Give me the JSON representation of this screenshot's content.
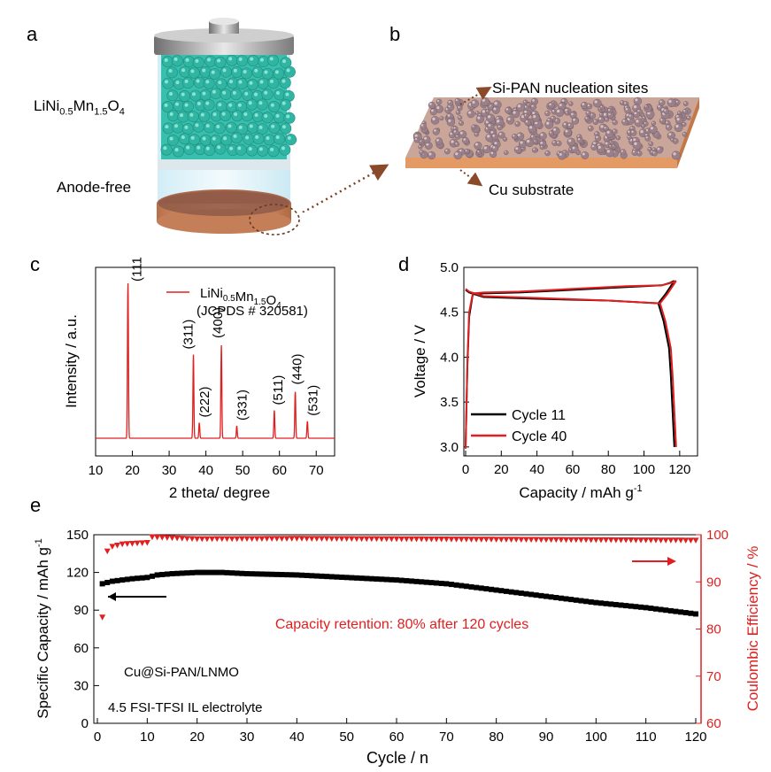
{
  "panels": {
    "a": {
      "label": "a",
      "cathode_label": "LiNi0.5Mn1.5O4",
      "anode_label": "Anode-free",
      "colors": {
        "cathode": "#3cc8b4",
        "copper": "#d99a6e",
        "cap": "#9a9a9a"
      }
    },
    "b": {
      "label": "b",
      "top_label": "Si-PAN nucleation sites",
      "bottom_label": "Cu substrate",
      "colors": {
        "arrow": "#8a4a2a",
        "substrate": "#e8a270",
        "particle": "#a08890"
      }
    },
    "c": {
      "label": "c",
      "legend_compound": "LiNi0.5Mn1.5O4",
      "legend_ref": "(JCPDS # 320581)",
      "xlabel": "2 theta/ degree",
      "ylabel": "Intensity / a.u.",
      "xticks": [
        "10",
        "20",
        "30",
        "40",
        "50",
        "60",
        "70"
      ],
      "peak_labels": [
        "(111)",
        "(311)",
        "(222)",
        "(400)",
        "(331)",
        "(511)",
        "(440)",
        "(531)"
      ],
      "color": "#e02020"
    },
    "d": {
      "label": "d",
      "xlabel": "Capacity / mAh g",
      "xlabel_sup": "-1",
      "ylabel": "Voltage / V",
      "xticks": [
        "0",
        "20",
        "40",
        "60",
        "80",
        "100",
        "120"
      ],
      "yticks": [
        "3.0",
        "3.5",
        "4.0",
        "4.5",
        "5.0"
      ],
      "legend": [
        {
          "name": "Cycle 11",
          "color": "#000000"
        },
        {
          "name": "Cycle 40",
          "color": "#e02020"
        }
      ]
    },
    "e": {
      "label": "e",
      "xlabel": "Cycle / n",
      "ylabel_left": "Specific Capacity / mAh g",
      "ylabel_left_sup": "-1",
      "ylabel_right": "Coulombic Efficiency / %",
      "xticks": [
        "0",
        "10",
        "20",
        "30",
        "40",
        "50",
        "60",
        "70",
        "80",
        "90",
        "100",
        "110",
        "120"
      ],
      "yticks_left": [
        "0",
        "30",
        "60",
        "90",
        "120",
        "150"
      ],
      "yticks_right": [
        "60",
        "70",
        "80",
        "90",
        "100"
      ],
      "annotation": "Capacity retention: 80% after 120 cycles",
      "cell_label": "Cu@Si-PAN/LNMO",
      "electrolyte_label": "4.5 FSI-TFSI IL electrolyte",
      "colors": {
        "capacity": "#000000",
        "efficiency": "#e02020"
      }
    }
  },
  "chart_data": [
    {
      "type": "line",
      "title": "",
      "xlabel": "2 theta/ degree",
      "ylabel": "Intensity / a.u.",
      "xlim": [
        10,
        75
      ],
      "series": [
        {
          "name": "LiNi0.5Mn1.5O4",
          "color": "#e02020"
        }
      ],
      "peaks": [
        {
          "x": 18.8,
          "h": 1.0,
          "label": "(111)"
        },
        {
          "x": 36.6,
          "h": 0.54,
          "label": "(311)"
        },
        {
          "x": 38.2,
          "h": 0.1,
          "label": "(222)"
        },
        {
          "x": 44.2,
          "h": 0.6,
          "label": "(400)"
        },
        {
          "x": 48.4,
          "h": 0.08,
          "label": "(331)"
        },
        {
          "x": 58.6,
          "h": 0.18,
          "label": "(511)"
        },
        {
          "x": 64.3,
          "h": 0.3,
          "label": "(440)"
        },
        {
          "x": 67.6,
          "h": 0.11,
          "label": "(531)"
        }
      ]
    },
    {
      "type": "line",
      "title": "",
      "xlabel": "Capacity / mAh g-1",
      "ylabel": "Voltage / V",
      "xlim": [
        0,
        130
      ],
      "ylim": [
        2.9,
        5.0
      ],
      "series": [
        {
          "name": "Cycle 11",
          "color": "#000000",
          "charge": [
            [
              0,
              3.0
            ],
            [
              1,
              3.9
            ],
            [
              2,
              4.45
            ],
            [
              4,
              4.7
            ],
            [
              10,
              4.71
            ],
            [
              30,
              4.72
            ],
            [
              60,
              4.75
            ],
            [
              90,
              4.78
            ],
            [
              110,
              4.8
            ],
            [
              115,
              4.83
            ],
            [
              117,
              4.85
            ]
          ],
          "discharge": [
            [
              117,
              4.85
            ],
            [
              116,
              4.82
            ],
            [
              112,
              4.7
            ],
            [
              108,
              4.6
            ],
            [
              80,
              4.63
            ],
            [
              40,
              4.65
            ],
            [
              10,
              4.67
            ],
            [
              2,
              4.72
            ],
            [
              0,
              4.75
            ]
          ],
          "drop": [
            [
              108,
              4.6
            ],
            [
              111,
              4.4
            ],
            [
              114,
              4.1
            ],
            [
              115,
              3.8
            ],
            [
              116,
              3.4
            ],
            [
              117,
              3.0
            ]
          ]
        },
        {
          "name": "Cycle 40",
          "color": "#e02020",
          "charge": [
            [
              0,
              2.98
            ],
            [
              1,
              3.95
            ],
            [
              2,
              4.5
            ],
            [
              4,
              4.71
            ],
            [
              10,
              4.72
            ],
            [
              30,
              4.73
            ],
            [
              60,
              4.76
            ],
            [
              90,
              4.79
            ],
            [
              110,
              4.8
            ],
            [
              116,
              4.83
            ],
            [
              118,
              4.85
            ]
          ],
          "discharge": [
            [
              118,
              4.85
            ],
            [
              117,
              4.82
            ],
            [
              113,
              4.7
            ],
            [
              109,
              4.6
            ],
            [
              80,
              4.63
            ],
            [
              40,
              4.66
            ],
            [
              10,
              4.68
            ],
            [
              2,
              4.73
            ],
            [
              0,
              4.76
            ]
          ],
          "drop": [
            [
              109,
              4.6
            ],
            [
              112,
              4.4
            ],
            [
              115,
              4.1
            ],
            [
              116,
              3.8
            ],
            [
              117,
              3.4
            ],
            [
              118,
              3.0
            ]
          ]
        }
      ]
    },
    {
      "type": "scatter",
      "title": "",
      "xlabel": "Cycle / n",
      "ylabel": "Specific Capacity / mAh g-1",
      "ylabel_right": "Coulombic Efficiency / %",
      "xlim": [
        0,
        121
      ],
      "ylim": [
        0,
        150
      ],
      "ylim_right": [
        60,
        100
      ],
      "series": [
        {
          "name": "Specific Capacity",
          "axis": "left",
          "color": "#000000",
          "marker": "square",
          "points": [
            [
              1,
              111
            ],
            [
              2,
              112
            ],
            [
              3,
              113
            ],
            [
              5,
              114
            ],
            [
              7,
              115
            ],
            [
              10,
              116
            ],
            [
              12,
              118
            ],
            [
              15,
              119
            ],
            [
              20,
              120
            ],
            [
              25,
              120
            ],
            [
              30,
              119
            ],
            [
              40,
              118
            ],
            [
              50,
              116
            ],
            [
              60,
              114
            ],
            [
              70,
              111
            ],
            [
              80,
              106
            ],
            [
              90,
              101
            ],
            [
              100,
              96
            ],
            [
              110,
              92
            ],
            [
              120,
              87
            ]
          ]
        },
        {
          "name": "Coulombic Efficiency",
          "axis": "right",
          "color": "#e02020",
          "marker": "triangle-down",
          "points": [
            [
              1,
              82.5
            ],
            [
              2,
              96.5
            ],
            [
              3,
              97.5
            ],
            [
              5,
              98
            ],
            [
              8,
              98.2
            ],
            [
              10,
              98.3
            ],
            [
              11,
              99.5
            ],
            [
              20,
              99.1
            ],
            [
              40,
              99.2
            ],
            [
              60,
              99.1
            ],
            [
              80,
              99.0
            ],
            [
              100,
              98.9
            ],
            [
              120,
              98.8
            ]
          ]
        }
      ]
    }
  ]
}
